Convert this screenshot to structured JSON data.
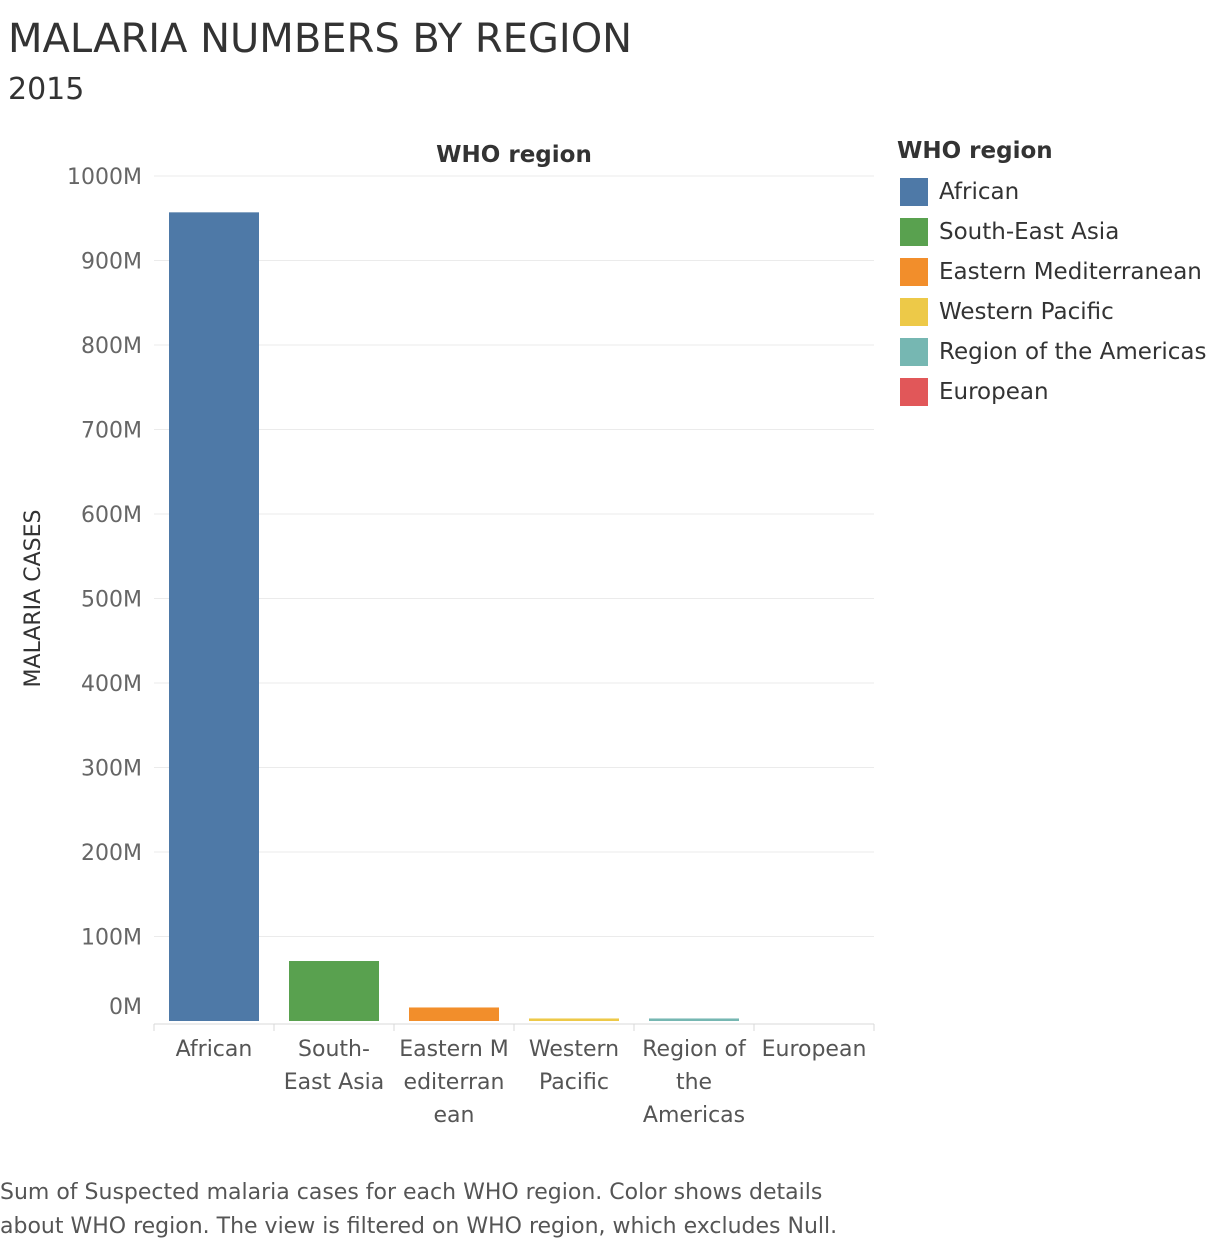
{
  "title": "MALARIA NUMBERS BY REGION",
  "subtitle": "2015",
  "caption": [
    "Sum of Suspected malaria cases for each WHO region.  Color shows details",
    "about WHO region. The view is filtered on WHO region, which excludes Null."
  ],
  "legend": {
    "title": "WHO region",
    "items": [
      {
        "label": "African",
        "color": "#4e79a7"
      },
      {
        "label": "South-East Asia",
        "color": "#59a14f"
      },
      {
        "label": "Eastern Mediterranean",
        "color": "#f28e2b"
      },
      {
        "label": "Western Pacific",
        "color": "#edc948"
      },
      {
        "label": "Region of the Americas",
        "color": "#76b7b2"
      },
      {
        "label": "European",
        "color": "#e15759"
      }
    ]
  },
  "chart_data": {
    "type": "bar",
    "header": "WHO region",
    "ylabel": "MALARIA CASES",
    "ylim": [
      0,
      1000
    ],
    "yunit": "M",
    "yticks": [
      "0M",
      "100M",
      "200M",
      "300M",
      "400M",
      "500M",
      "600M",
      "700M",
      "800M",
      "900M",
      "1000M"
    ],
    "categories": [
      "African",
      "South-East Asia",
      "Eastern Mediterranean",
      "Western Pacific",
      "Region of the Americas",
      "European"
    ],
    "category_label_lines": [
      [
        "African"
      ],
      [
        "South-",
        "East Asia"
      ],
      [
        "Eastern M",
        "editerran",
        "ean"
      ],
      [
        "Western",
        "Pacific"
      ],
      [
        "Region of",
        "the",
        "Americas"
      ],
      [
        "European"
      ]
    ],
    "values": [
      957,
      71,
      16,
      3,
      3,
      0
    ],
    "colors": [
      "#4e79a7",
      "#59a14f",
      "#f28e2b",
      "#edc948",
      "#76b7b2",
      "#e15759"
    ],
    "grid": true,
    "legend_position": "right"
  }
}
